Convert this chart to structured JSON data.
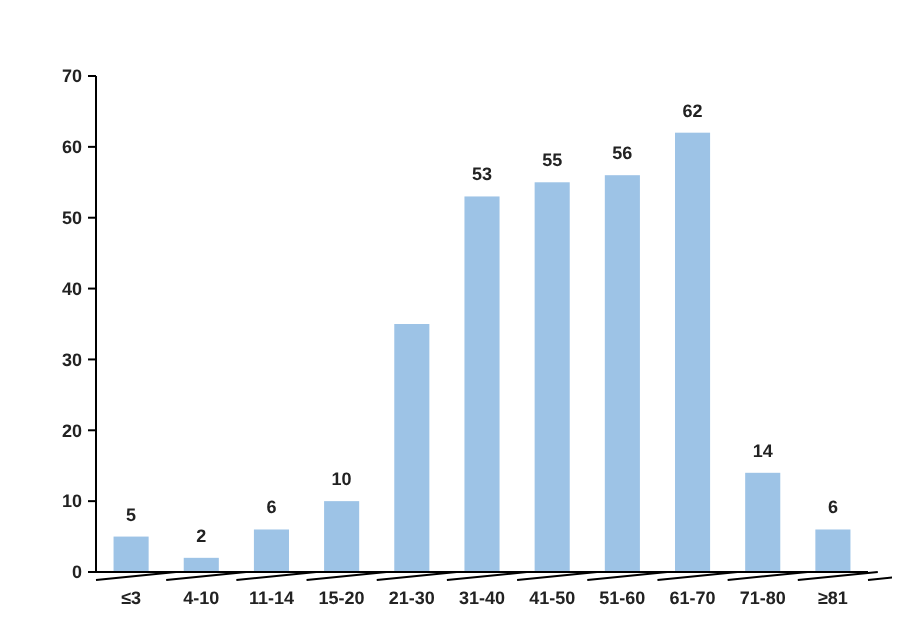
{
  "chart_data": {
    "type": "bar",
    "categories": [
      "≤3",
      "4-10",
      "11-14",
      "15-20",
      "21-30",
      "31-40",
      "41-50",
      "51-60",
      "61-70",
      "71-80",
      "≥81"
    ],
    "values": [
      5,
      2,
      6,
      10,
      35,
      53,
      55,
      56,
      62,
      14,
      6
    ],
    "value_labels": [
      "5",
      "2",
      "6",
      "10",
      null,
      "53",
      "55",
      "56",
      "62",
      "14",
      "6"
    ],
    "color": "#9dc3e6",
    "ylim": [
      0,
      70
    ],
    "yticks": [
      0,
      10,
      20,
      30,
      40,
      50,
      60,
      70
    ],
    "grid": false
  }
}
